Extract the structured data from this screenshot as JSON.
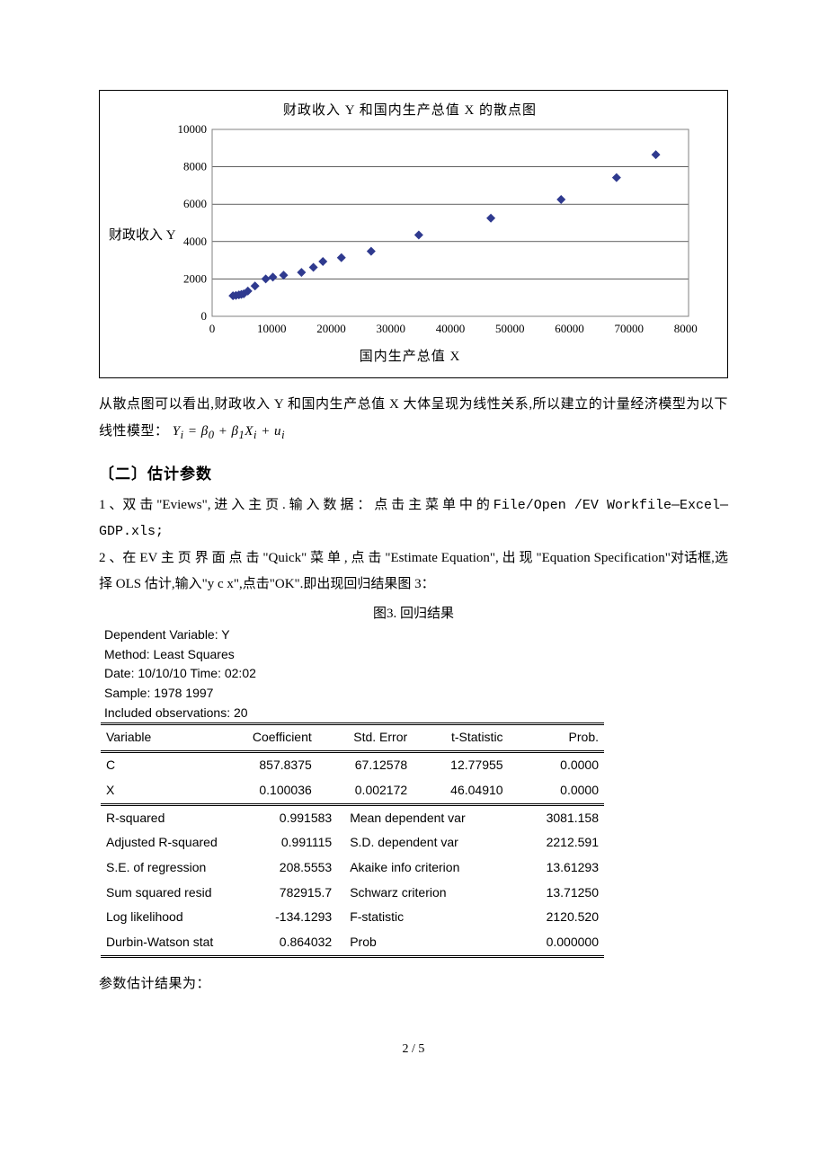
{
  "chart": {
    "type": "scatter",
    "title": "财政收入 Y 和国内生产总值 X 的散点图",
    "ylabel": "财政收入 Y",
    "xlabel": "国内生产总值 X",
    "xlim": [
      0,
      80000
    ],
    "ylim": [
      0,
      10000
    ],
    "xtick_step": 10000,
    "ytick_step": 2000,
    "xticks": [
      "0",
      "10000",
      "20000",
      "30000",
      "40000",
      "50000",
      "60000",
      "70000",
      "80000"
    ],
    "yticks": [
      "0",
      "2000",
      "4000",
      "6000",
      "8000",
      "10000"
    ],
    "marker_color": "#2f3a8f",
    "marker_type": "diamond",
    "marker_size": 5,
    "grid_color": "#000000",
    "border_color": "#808080",
    "background_color": "#ffffff",
    "points_x": [
      3500,
      4000,
      4500,
      4900,
      5300,
      6000,
      7200,
      9000,
      10200,
      12000,
      15000,
      17000,
      18600,
      21700,
      26700,
      34700,
      46800,
      58600,
      67900,
      74500
    ],
    "points_y": [
      1100,
      1120,
      1150,
      1170,
      1200,
      1350,
      1620,
      2000,
      2100,
      2200,
      2350,
      2620,
      2930,
      3140,
      3480,
      4350,
      5250,
      6250,
      7420,
      8650
    ]
  },
  "text_after_chart_1": "从散点图可以看出,财政收入 Y 和国内生产总值 X 大体呈现为线性关系,所以建立的计量经济模型为以下线性模型：",
  "formula": "Yᵢ = β₀ + β₁Xᵢ + uᵢ",
  "section2_title": "〔二〕估计参数",
  "instr1_pre": "1 、双 击 \"Eviews\", 进 入 主 页 . 输 入 数 据 ： 点 击 主 菜 单 中 的 ",
  "instr1_mono": "File/Open /EV Workfile—Excel—GDP.xls;",
  "instr2": "2 、在 EV 主 页 界 面 点 击 \"Quick\" 菜 单 , 点 击 \"Estimate Equation\", 出 现 \"Equation Specification\"对话框,选择 OLS 估计,输入\"y c x\",点击\"OK\".即出现回归结果图 3：",
  "fig3_caption": "图3. 回归结果",
  "eviews_header": {
    "l1": "Dependent Variable: Y",
    "l2": "Method: Least Squares",
    "l3": "Date: 10/10/10    Time: 02:02",
    "l4": "Sample: 1978 1997",
    "l5": "Included observations: 20"
  },
  "coef_headers": [
    "Variable",
    "Coefficient",
    "Std. Error",
    "t-Statistic",
    "Prob."
  ],
  "coef_rows": [
    {
      "var": "C",
      "coef": "857.8375",
      "se": "67.12578",
      "t": "12.77955",
      "p": "0.0000"
    },
    {
      "var": "X",
      "coef": "0.100036",
      "se": "0.002172",
      "t": "46.04910",
      "p": "0.0000"
    }
  ],
  "stats_rows": [
    {
      "l1": "R-squared",
      "v1": "0.991583",
      "l2": "Mean dependent var",
      "v2": "3081.158"
    },
    {
      "l1": "Adjusted R-squared",
      "v1": "0.991115",
      "l2": "S.D. dependent var",
      "v2": "2212.591"
    },
    {
      "l1": "S.E. of regression",
      "v1": "208.5553",
      "l2": "Akaike info criterion",
      "v2": "13.61293"
    },
    {
      "l1": "Sum squared resid",
      "v1": "782915.7",
      "l2": "Schwarz criterion",
      "v2": "13.71250"
    },
    {
      "l1": "Log likelihood",
      "v1": "-134.1293",
      "l2": "F-statistic",
      "v2": "2120.520"
    },
    {
      "l1": "Durbin-Watson stat",
      "v1": "0.864032",
      "l2": "Prob<F-statistic>",
      "v2": "0.000000"
    }
  ],
  "text_after_stats": "参数估计结果为：",
  "page_number": "2 / 5"
}
